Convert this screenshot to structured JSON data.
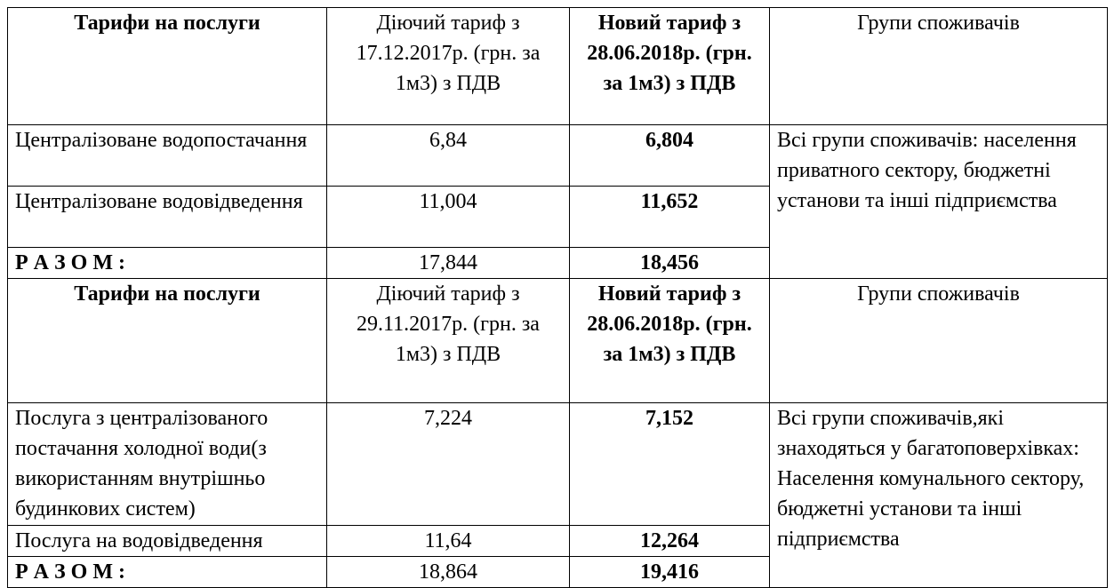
{
  "sections": [
    {
      "header": [
        "Тарифи на послуги",
        "Діючий тариф з 17.12.2017р. (грн. за 1м3) з ПДВ",
        "Новий тариф з 28.06.2018р. (грн. за 1м3) з ПДВ",
        "Групи споживачів"
      ],
      "rows": [
        [
          "Централізоване водопостачання",
          "6,84",
          "6,804"
        ],
        [
          "Централізоване водовідведення",
          "11,004",
          "11,652"
        ]
      ],
      "total": [
        "Р А З О М :",
        "17,844",
        "18,456"
      ],
      "groups": "Всі групи споживачів: населення приватного сектору, бюджетні установи та інші підприємства"
    },
    {
      "header": [
        "Тарифи на послуги",
        "Діючий тариф з 29.11.2017р. (грн. за 1м3) з ПДВ",
        "Новий тариф з 28.06.2018р. (грн. за 1м3) з ПДВ",
        "Групи споживачів"
      ],
      "rows": [
        [
          "Послуга з централізованого постачання холодної води(з використанням внутрішньо будинкових систем)",
          "7,224",
          "7,152"
        ],
        [
          "Послуга на водовідведення",
          "11,64",
          "12,264"
        ]
      ],
      "total": [
        "Р А З О М :",
        "18,864",
        "19,416"
      ],
      "groups": "Всі групи споживачів,які знаходяться у багатоповерхівках: Населення комунального сектору, бюджетні установи та інші підприємства"
    }
  ]
}
